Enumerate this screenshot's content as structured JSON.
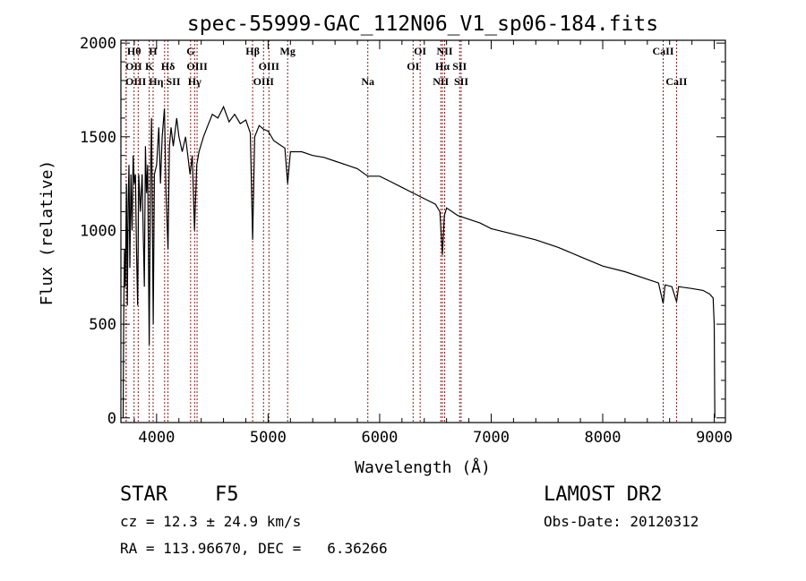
{
  "chart_data": {
    "type": "line",
    "title": "spec-55999-GAC_112N06_V1_sp06-184.fits",
    "xlabel": "Wavelength (Å)",
    "ylabel": "Flux (relative)",
    "xlim": [
      3680,
      9100
    ],
    "ylim": [
      -25,
      2015
    ],
    "xticks": [
      4000,
      5000,
      6000,
      7000,
      8000,
      9000
    ],
    "yticks": [
      0,
      500,
      1000,
      1500,
      2000
    ],
    "grid": false,
    "series": [
      {
        "name": "spectrum",
        "points": [
          [
            3700,
            0
          ],
          [
            3705,
            500
          ],
          [
            3712,
            900
          ],
          [
            3720,
            700
          ],
          [
            3730,
            1250
          ],
          [
            3738,
            600
          ],
          [
            3745,
            1150
          ],
          [
            3752,
            1350
          ],
          [
            3760,
            800
          ],
          [
            3770,
            1300
          ],
          [
            3780,
            1000
          ],
          [
            3790,
            1400
          ],
          [
            3800,
            1250
          ],
          [
            3810,
            1300
          ],
          [
            3820,
            900
          ],
          [
            3830,
            600
          ],
          [
            3840,
            1300
          ],
          [
            3855,
            1100
          ],
          [
            3870,
            1300
          ],
          [
            3880,
            1000
          ],
          [
            3890,
            700
          ],
          [
            3900,
            1450
          ],
          [
            3910,
            1200
          ],
          [
            3920,
            1350
          ],
          [
            3934,
            390
          ],
          [
            3945,
            1250
          ],
          [
            3955,
            1600
          ],
          [
            3970,
            500
          ],
          [
            3980,
            1300
          ],
          [
            4000,
            1350
          ],
          [
            4020,
            1550
          ],
          [
            4035,
            1250
          ],
          [
            4050,
            1500
          ],
          [
            4070,
            1650
          ],
          [
            4085,
            1200
          ],
          [
            4102,
            900
          ],
          [
            4115,
            1450
          ],
          [
            4130,
            1550
          ],
          [
            4150,
            1450
          ],
          [
            4180,
            1600
          ],
          [
            4200,
            1500
          ],
          [
            4230,
            1420
          ],
          [
            4260,
            1500
          ],
          [
            4300,
            1300
          ],
          [
            4320,
            1400
          ],
          [
            4340,
            1000
          ],
          [
            4360,
            1350
          ],
          [
            4380,
            1420
          ],
          [
            4420,
            1500
          ],
          [
            4460,
            1560
          ],
          [
            4500,
            1620
          ],
          [
            4550,
            1600
          ],
          [
            4600,
            1660
          ],
          [
            4650,
            1580
          ],
          [
            4700,
            1620
          ],
          [
            4750,
            1570
          ],
          [
            4800,
            1590
          ],
          [
            4840,
            1520
          ],
          [
            4861,
            950
          ],
          [
            4880,
            1500
          ],
          [
            4920,
            1560
          ],
          [
            4960,
            1540
          ],
          [
            5000,
            1530
          ],
          [
            5050,
            1480
          ],
          [
            5100,
            1460
          ],
          [
            5150,
            1440
          ],
          [
            5175,
            1250
          ],
          [
            5200,
            1420
          ],
          [
            5300,
            1420
          ],
          [
            5400,
            1400
          ],
          [
            5500,
            1390
          ],
          [
            5600,
            1370
          ],
          [
            5700,
            1350
          ],
          [
            5800,
            1330
          ],
          [
            5894,
            1290
          ],
          [
            6000,
            1290
          ],
          [
            6100,
            1260
          ],
          [
            6200,
            1230
          ],
          [
            6300,
            1200
          ],
          [
            6400,
            1170
          ],
          [
            6500,
            1140
          ],
          [
            6540,
            1100
          ],
          [
            6563,
            870
          ],
          [
            6580,
            1080
          ],
          [
            6600,
            1120
          ],
          [
            6700,
            1080
          ],
          [
            6800,
            1060
          ],
          [
            6900,
            1040
          ],
          [
            7000,
            1010
          ],
          [
            7200,
            980
          ],
          [
            7400,
            950
          ],
          [
            7600,
            910
          ],
          [
            7800,
            860
          ],
          [
            8000,
            810
          ],
          [
            8200,
            780
          ],
          [
            8400,
            740
          ],
          [
            8500,
            720
          ],
          [
            8542,
            610
          ],
          [
            8560,
            710
          ],
          [
            8620,
            700
          ],
          [
            8662,
            620
          ],
          [
            8680,
            700
          ],
          [
            8800,
            690
          ],
          [
            8900,
            680
          ],
          [
            8960,
            660
          ],
          [
            8990,
            640
          ],
          [
            9000,
            500
          ],
          [
            9005,
            0
          ]
        ]
      }
    ],
    "line_color": "#000000",
    "marker_color": "#8b1a1a",
    "spectral_lines": [
      {
        "label": "Hθ",
        "wavelength": 3798,
        "row": 0
      },
      {
        "label": "H",
        "wavelength": 3969,
        "row": 0
      },
      {
        "label": "G",
        "wavelength": 4305,
        "row": 0
      },
      {
        "label": "Hβ",
        "wavelength": 4861,
        "row": 0
      },
      {
        "label": "Mg",
        "wavelength": 5175,
        "row": 0
      },
      {
        "label": "OI",
        "wavelength": 6363,
        "row": 0
      },
      {
        "label": "NII",
        "wavelength": 6583,
        "row": 0
      },
      {
        "label": "CaII",
        "wavelength": 8542,
        "row": 0
      },
      {
        "label": "OII",
        "wavelength": 3727,
        "row": 1
      },
      {
        "label": "K",
        "wavelength": 3934,
        "row": 1
      },
      {
        "label": "Hδ",
        "wavelength": 4102,
        "row": 1
      },
      {
        "label": "OIII",
        "wavelength": 4363,
        "row": 1
      },
      {
        "label": "OIII",
        "wavelength": 5007,
        "row": 1
      },
      {
        "label": "OI",
        "wavelength": 6300,
        "row": 1
      },
      {
        "label": "Hα",
        "wavelength": 6563,
        "row": 1
      },
      {
        "label": "SII",
        "wavelength": 6717,
        "row": 1
      },
      {
        "label": "OIII",
        "wavelength": 3727,
        "row": 2
      },
      {
        "label": "Hη",
        "wavelength": 3835,
        "row": 2
      },
      {
        "label": "SII",
        "wavelength": 4072,
        "row": 2
      },
      {
        "label": "Hγ",
        "wavelength": 4341,
        "row": 2
      },
      {
        "label": "OIII",
        "wavelength": 4959,
        "row": 2
      },
      {
        "label": "Na",
        "wavelength": 5894,
        "row": 2
      },
      {
        "label": "NII",
        "wavelength": 6548,
        "row": 2
      },
      {
        "label": "SII",
        "wavelength": 6731,
        "row": 2
      },
      {
        "label": "CaII",
        "wavelength": 8662,
        "row": 2
      }
    ]
  },
  "info": {
    "object_class": "STAR",
    "subclass": "F5",
    "cz": "cz = 12.3 ± 24.9 km/s",
    "coords": "RA = 113.96670, DEC =   6.36266",
    "survey": "LAMOST DR2",
    "obs_date": "Obs-Date: 20120312"
  }
}
